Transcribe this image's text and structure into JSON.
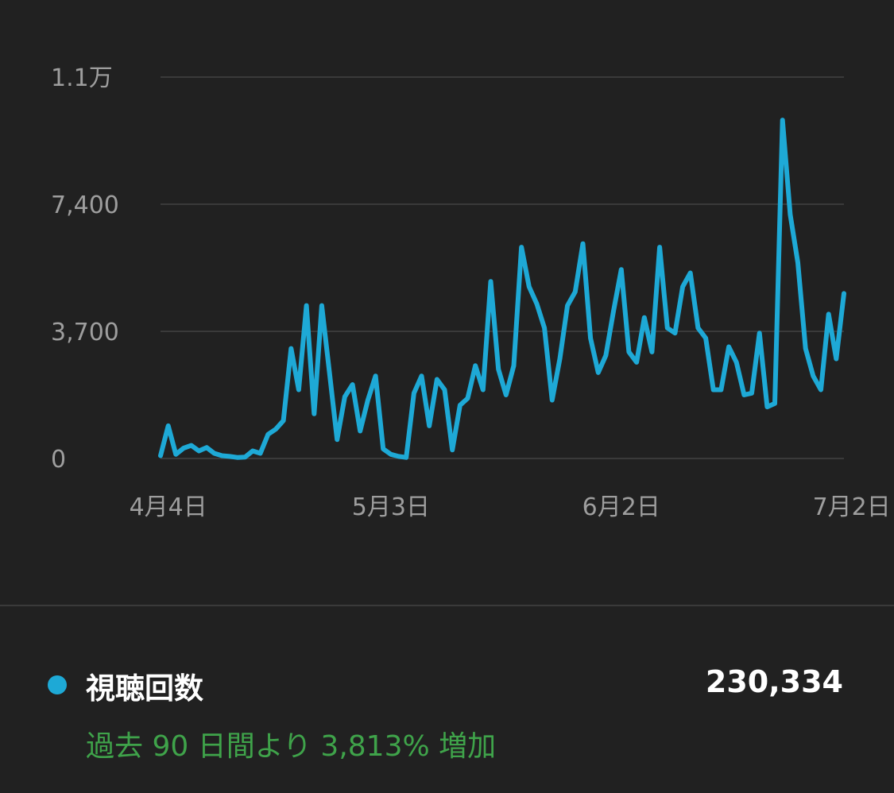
{
  "chart_data": {
    "type": "line",
    "series": [
      {
        "values": [
          80,
          950,
          120,
          300,
          380,
          220,
          320,
          150,
          80,
          60,
          30,
          40,
          220,
          150,
          700,
          850,
          1100,
          3200,
          2000,
          4450,
          1300,
          4450,
          2500,
          550,
          1800,
          2150,
          800,
          1700,
          2400,
          280,
          120,
          60,
          30,
          1900,
          2400,
          950,
          2300,
          2000,
          250,
          1550,
          1750,
          2700,
          2000,
          5150,
          2600,
          1850,
          2700,
          6150,
          5000,
          4500,
          3800,
          1700,
          2900,
          4450,
          4850,
          6250,
          3500,
          2500,
          3000,
          4300,
          5500,
          3100,
          2800,
          4100,
          3100,
          6150,
          3800,
          3650,
          5000,
          5400,
          3800,
          3500,
          2000,
          2000,
          3250,
          2800,
          1850,
          1900,
          3650,
          1500,
          1600,
          9850,
          7100,
          5700,
          3200,
          2400,
          2000,
          4200,
          2900,
          4800
        ]
      }
    ],
    "x_ticks": [
      "4月4日",
      "5月3日",
      "6月2日",
      "7月2日"
    ],
    "x_tick_index": [
      1,
      30,
      60,
      90
    ],
    "y_ticks": [
      "0",
      "3,700",
      "7,400",
      "1.1万"
    ],
    "y_tick_values": [
      0,
      3700,
      7400,
      11100
    ],
    "ylim": [
      0,
      11100
    ],
    "grid": true,
    "line_color": "#1ea9d6"
  },
  "legend": {
    "label": "視聴回数",
    "total": "230,334",
    "comparison": "過去 90 日間より 3,813% 増加"
  },
  "colors": {
    "background": "#212121",
    "grid": "#3a3a3a",
    "tick_text": "#9e9e9e",
    "comparison_text": "#3fa34a"
  }
}
